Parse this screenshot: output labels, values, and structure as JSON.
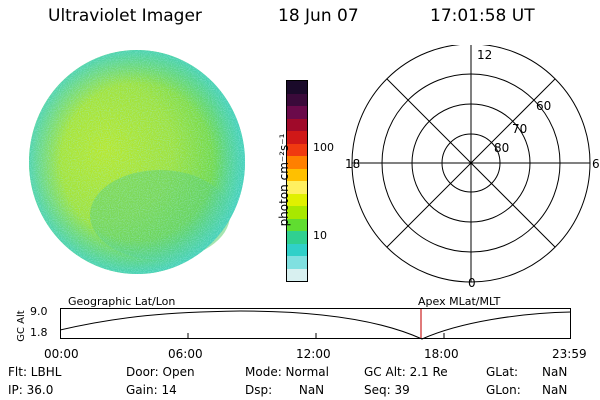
{
  "header": {
    "instrument": "Ultraviolet Imager",
    "date": "18 Jun 07",
    "time": "17:01:58 UT"
  },
  "colorbar": {
    "unit_label": "photon cm⁻²s⁻¹",
    "tick_labels": [
      "100",
      "10"
    ],
    "colors": [
      "#1a0a2a",
      "#3a0a3a",
      "#6a0a4a",
      "#a00a2a",
      "#d01818",
      "#f03a10",
      "#ff8000",
      "#ffc000",
      "#fff060",
      "#e0f000",
      "#a8e800",
      "#60dd30",
      "#30d090",
      "#30d0c8",
      "#80e0e0",
      "#d8f0f0"
    ]
  },
  "polar_plot": {
    "mlt_labels": {
      "top": "12",
      "left": "18",
      "right": "6",
      "bottom": "0"
    },
    "lat_labels": [
      "60",
      "70",
      "80"
    ]
  },
  "timeline": {
    "left_label": "Geographic Lat/Lon",
    "right_label": "Apex MLat/MLT",
    "y_axis_title": "GC Alt",
    "y_ticks": [
      "9.0",
      "1.8"
    ],
    "x_ticks": [
      "00:00",
      "06:00",
      "12:00",
      "18:00",
      "23:59"
    ],
    "marker_color": "#cc2222"
  },
  "info_rows": [
    [
      {
        "key": "Flt",
        "label": "Flt: LBHL"
      },
      {
        "key": "Door",
        "label": "Door: Open"
      },
      {
        "key": "Mode",
        "label": "Mode: Normal"
      },
      {
        "key": "GCAlt",
        "label": "GC Alt: 2.1 Re"
      },
      {
        "key": "GLat_k",
        "label": "GLat:"
      },
      {
        "key": "GLat_v",
        "label": "NaN"
      }
    ],
    [
      {
        "key": "IP",
        "label": "IP: 36.0"
      },
      {
        "key": "Gain",
        "label": "Gain: 14"
      },
      {
        "key": "Dsp",
        "label": "Dsp:       NaN"
      },
      {
        "key": "Seq",
        "label": "Seq: 39"
      },
      {
        "key": "GLon_k",
        "label": "GLon:"
      },
      {
        "key": "GLon_v",
        "label": "NaN"
      }
    ]
  ]
}
